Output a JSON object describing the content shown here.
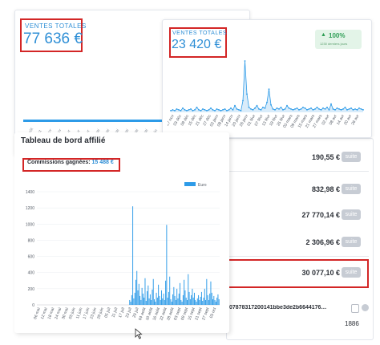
{
  "card1": {
    "label": "VENTES TOTALES",
    "value": "77 636 €"
  },
  "card2": {
    "label": "VENTES TOTALES",
    "value": "23 420 €",
    "trend": {
      "arrow": "▲",
      "percent": "100%",
      "caption": "1230 derniers jours"
    }
  },
  "affiliate": {
    "title": "Tableau de bord affilié",
    "commission_label": "Commissions gagnées:",
    "commission_value": "15 488 €"
  },
  "rows": [
    {
      "amount": "190,55 €",
      "badge": "suite"
    },
    {
      "amount": "832,98 €",
      "badge": "suite"
    },
    {
      "amount": "27 770,14 €",
      "badge": "suite"
    },
    {
      "amount": "2 306,96 €",
      "badge": "suite"
    },
    {
      "amount": "30 077,10 €",
      "badge": "suite"
    }
  ],
  "footer": {
    "hash": "07878317200141bbe3de2b6644176…",
    "count": "1886"
  },
  "chart_data": [
    {
      "type": "bar",
      "legend": [
        "Euro"
      ],
      "legend_position": "top-right",
      "ylim": [
        0,
        1400
      ],
      "yticks": [
        0,
        200,
        400,
        600,
        800,
        1000,
        1200,
        1400
      ],
      "xticks": [
        "06 mai",
        "12 mai",
        "18 mai",
        "24 mai",
        "30 mai",
        "05 juin",
        "11 juin",
        "17 juin",
        "23 juin",
        "29 juin",
        "05 juil",
        "11 juil",
        "17 juil",
        "23 juil",
        "29 juil",
        "04 août",
        "10 août",
        "16 août",
        "22 août",
        "28 août",
        "03 sept",
        "09 sept",
        "15 sept",
        "21 sept",
        "27 sept",
        "03 oct"
      ],
      "series": [
        {
          "name": "Euro",
          "color": "#2d9be8",
          "values": [
            0,
            0,
            0,
            0,
            0,
            0,
            0,
            0,
            0,
            0,
            0,
            0,
            0,
            0,
            0,
            0,
            0,
            0,
            0,
            0,
            0,
            0,
            0,
            0,
            0,
            0,
            0,
            0,
            0,
            0,
            0,
            0,
            0,
            0,
            0,
            0,
            0,
            0,
            0,
            0,
            0,
            0,
            0,
            0,
            0,
            0,
            0,
            0,
            0,
            0,
            0,
            0,
            0,
            0,
            0,
            0,
            0,
            0,
            0,
            0,
            0,
            0,
            0,
            0,
            0,
            0,
            0,
            0,
            0,
            0,
            0,
            0,
            0,
            0,
            0,
            0,
            0,
            0,
            0,
            0,
            0,
            0,
            0,
            0,
            0,
            0,
            0,
            0,
            0,
            0,
            60,
            40,
            120,
            1220,
            80,
            150,
            310,
            420,
            180,
            260,
            110,
            60,
            210,
            140,
            90,
            330,
            50,
            170,
            240,
            80,
            130,
            60,
            190,
            320,
            70,
            40,
            150,
            90,
            250,
            110,
            60,
            180,
            80,
            140,
            60,
            300,
            990,
            90,
            160,
            350,
            70,
            40,
            130,
            220,
            110,
            60,
            200,
            80,
            140,
            270,
            60,
            40,
            120,
            310,
            180,
            90,
            60,
            380,
            160,
            70,
            120,
            200,
            90,
            150,
            60,
            40,
            80,
            120,
            60,
            100,
            160,
            50,
            90,
            200,
            60,
            320,
            120,
            60,
            140,
            290,
            150,
            70,
            110,
            60,
            40,
            90,
            130,
            70
          ]
        }
      ]
    },
    {
      "type": "line",
      "xticks": [
        "27 nov",
        "03 déc",
        "09 déc",
        "15 déc",
        "21 déc",
        "27 déc",
        "02 janv",
        "08 janv",
        "14 janv",
        "20 janv",
        "26 janv",
        "01 févr",
        "07 févr",
        "13 févr",
        "19 févr",
        "25 févr",
        "03 mars",
        "09 mars",
        "15 mars",
        "21 mars",
        "27 mars",
        "02 avr",
        "08 avr",
        "14 avr",
        "20 avr",
        "26 avr"
      ],
      "series": [
        {
          "name": "",
          "color": "#2d9be8",
          "values": [
            2,
            3,
            2,
            4,
            3,
            2,
            5,
            3,
            2,
            3,
            4,
            2,
            3,
            6,
            3,
            2,
            4,
            3,
            2,
            3,
            5,
            3,
            2,
            4,
            3,
            2,
            3,
            4,
            2,
            3,
            5,
            3,
            8,
            4,
            3,
            2,
            14,
            62,
            22,
            6,
            4,
            3,
            5,
            8,
            4,
            3,
            6,
            5,
            12,
            28,
            9,
            4,
            3,
            5,
            4,
            6,
            3,
            4,
            8,
            5,
            4,
            3,
            4,
            5,
            3,
            4,
            6,
            5,
            3,
            4,
            5,
            3,
            4,
            6,
            4,
            3,
            5,
            4,
            6,
            3,
            10,
            4,
            3,
            5,
            4,
            3,
            4,
            6,
            3,
            4,
            5,
            3,
            4,
            3,
            5,
            4,
            3
          ]
        }
      ]
    }
  ]
}
